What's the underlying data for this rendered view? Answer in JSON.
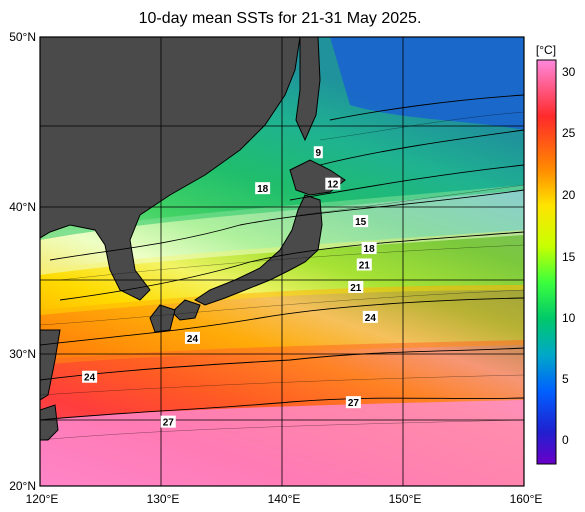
{
  "title": "10-day mean SSTs for 21-31 May 2025.",
  "lat_labels": [
    "50°N",
    "40°N",
    "30°N",
    "20°N"
  ],
  "lon_labels": [
    "120°E",
    "130°E",
    "140°E",
    "150°E",
    "160°E"
  ],
  "colorbar": {
    "unit": "[°C]",
    "ticks": [
      "30",
      "25",
      "20",
      "15",
      "10",
      "5",
      "0"
    ],
    "colors": [
      "#ff88dd",
      "#ff2a2a",
      "#ff8a00",
      "#ffe400",
      "#c8ff00",
      "#3cff3c",
      "#00c96a",
      "#00a8c8",
      "#0060ff",
      "#2020d0",
      "#6a00c8"
    ]
  },
  "contour_labels": [
    {
      "text": "9",
      "lon": 143.0,
      "lat": 42.3
    },
    {
      "text": "12",
      "lon": 144.2,
      "lat": 40.2
    },
    {
      "text": "15",
      "lon": 146.5,
      "lat": 37.7
    },
    {
      "text": "18",
      "lon": 147.2,
      "lat": 35.9
    },
    {
      "text": "21",
      "lon": 146.8,
      "lat": 34.8
    },
    {
      "text": "21",
      "lon": 146.1,
      "lat": 33.3
    },
    {
      "text": "24",
      "lon": 147.3,
      "lat": 31.3
    },
    {
      "text": "24",
      "lon": 132.6,
      "lat": 29.9
    },
    {
      "text": "24",
      "lon": 124.1,
      "lat": 27.3
    },
    {
      "text": "27",
      "lon": 145.9,
      "lat": 25.6
    },
    {
      "text": "27",
      "lon": 130.6,
      "lat": 24.3
    },
    {
      "text": "18",
      "lon": 138.4,
      "lat": 39.9
    }
  ]
}
